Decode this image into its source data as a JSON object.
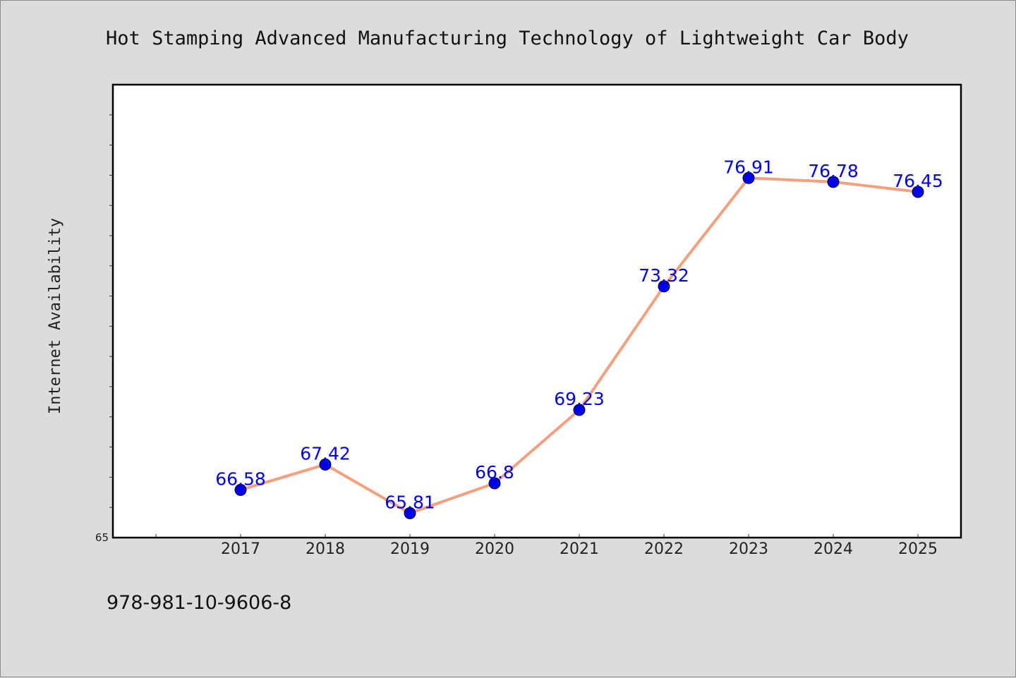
{
  "chart_data": {
    "type": "line",
    "title": "Hot Stamping Advanced Manufacturing Technology of Lightweight Car Body",
    "xlabel": "",
    "ylabel": "Internet Availability",
    "categories": [
      "2017",
      "2018",
      "2019",
      "2020",
      "2021",
      "2022",
      "2023",
      "2024",
      "2025"
    ],
    "series": [
      {
        "values": [
          66.58,
          67.42,
          65.81,
          66.8,
          69.23,
          73.32,
          76.91,
          76.78,
          76.45
        ]
      }
    ],
    "data_labels": [
      "66.58",
      "67.42",
      "65.81",
      "66.8",
      "69.23",
      "73.32",
      "76.91",
      "76.78",
      "76.45"
    ],
    "ylim": [
      65,
      80
    ],
    "yticks_labeled": [
      "65"
    ],
    "grid": false,
    "legend": "none",
    "colors": {
      "line": "#f4a07f",
      "marker": "#0000ee",
      "label": "#0000ee",
      "background": "#dcdcdc",
      "plot_area": "#ffffff"
    }
  },
  "footer": {
    "isbn": "978-981-10-9606-8"
  }
}
